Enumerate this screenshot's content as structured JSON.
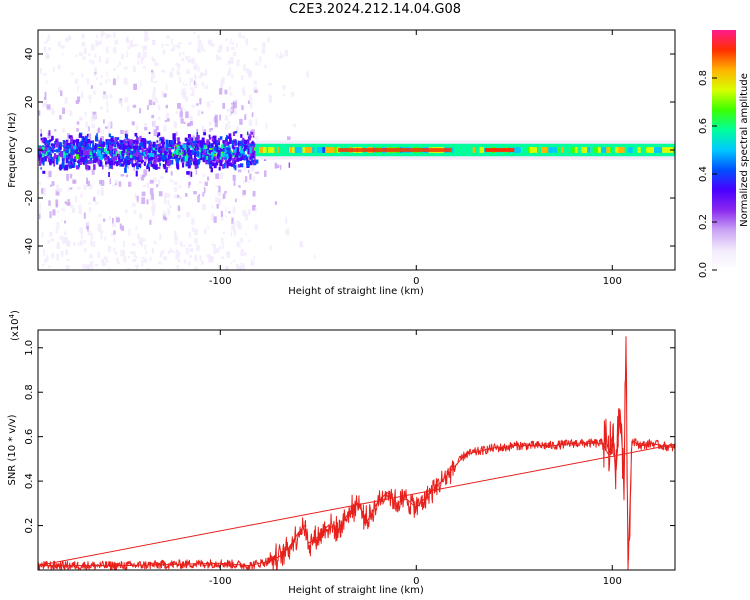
{
  "title": "C2E3.2024.212.14.04.G08",
  "colors": {
    "snr_line": "#e8201c",
    "colormap": [
      "#ffffff",
      "#f3eafc",
      "#c9a2f3",
      "#8a28ef",
      "#4a00ff",
      "#0050ff",
      "#00c8ff",
      "#00ff9c",
      "#3cff00",
      "#d8ff00",
      "#ffb400",
      "#ff2e00",
      "#ff1a8c"
    ]
  },
  "chart_data": [
    {
      "type": "heatmap",
      "title": "C2E3.2024.212.14.04.G08",
      "xlabel": "Height of straight line (km)",
      "ylabel": "Frequency (Hz)",
      "xlim": [
        -193,
        132
      ],
      "ylim": [
        -50,
        50
      ],
      "x_ticks": [
        -100,
        0,
        100
      ],
      "x_tick_labels": [
        "-100",
        "0",
        "100"
      ],
      "y_ticks": [
        -40,
        -20,
        0,
        20,
        40
      ],
      "y_tick_labels": [
        "-40",
        "-20",
        "0",
        "20",
        "40"
      ],
      "colorbar": {
        "label": "Normalized spectral amplitude",
        "range": [
          0,
          1
        ],
        "ticks": [
          0.0,
          0.2,
          0.4,
          0.6,
          0.8
        ],
        "tick_labels": [
          "0.0",
          "0.2",
          "0.4",
          "0.6",
          "0.8"
        ]
      },
      "signal_band": {
        "center_hz": 0,
        "noisy_region_x": [
          -193,
          -82
        ],
        "noisy_halfwidth_hz": 6,
        "noise_scatter_halfwidth_hz": 50,
        "coherent_region_x": [
          -82,
          132
        ],
        "coherent_halfwidth_hz": 2,
        "peak_amplitude": 0.95
      },
      "grid": false
    },
    {
      "type": "line",
      "xlabel": "Height of straight line (km)",
      "ylabel": "SNR (10 * v/v)",
      "y_multiplier": "(x10",
      "y_multiplier_exp": "4",
      "y_multiplier_close": ")",
      "xlim": [
        -193,
        132
      ],
      "ylim": [
        0,
        1.08
      ],
      "x_ticks": [
        -100,
        0,
        100
      ],
      "x_tick_labels": [
        "-100",
        "0",
        "100"
      ],
      "y_ticks": [
        0.2,
        0.4,
        0.6,
        0.8,
        1.0
      ],
      "y_tick_labels": [
        "0.2",
        "0.4",
        "0.6",
        "0.8",
        "1.0"
      ],
      "series": [
        {
          "color": "#e8201c",
          "x": [
            -193,
            -150,
            -100,
            -85,
            -80,
            -75,
            -70,
            -65,
            -60,
            -57,
            -55,
            -50,
            -45,
            -40,
            -35,
            -30,
            -25,
            -20,
            -15,
            -10,
            -5,
            0,
            5,
            10,
            15,
            20,
            25,
            30,
            35,
            40,
            45,
            50,
            60,
            70,
            80,
            90,
            95,
            98,
            100,
            102,
            104,
            106,
            107,
            108,
            110,
            115,
            120,
            125,
            132
          ],
          "values": [
            0.02,
            0.02,
            0.03,
            0.02,
            0.03,
            0.04,
            0.06,
            0.1,
            0.17,
            0.2,
            0.12,
            0.15,
            0.2,
            0.18,
            0.25,
            0.3,
            0.22,
            0.3,
            0.35,
            0.3,
            0.32,
            0.28,
            0.33,
            0.37,
            0.42,
            0.47,
            0.52,
            0.53,
            0.54,
            0.55,
            0.55,
            0.56,
            0.56,
            0.56,
            0.57,
            0.57,
            0.57,
            0.52,
            0.6,
            0.45,
            0.72,
            0.4,
            1.05,
            0.0,
            0.58,
            0.56,
            0.57,
            0.56,
            0.55
          ],
          "noise_amplitude": 0.02
        }
      ],
      "grid": false
    }
  ]
}
